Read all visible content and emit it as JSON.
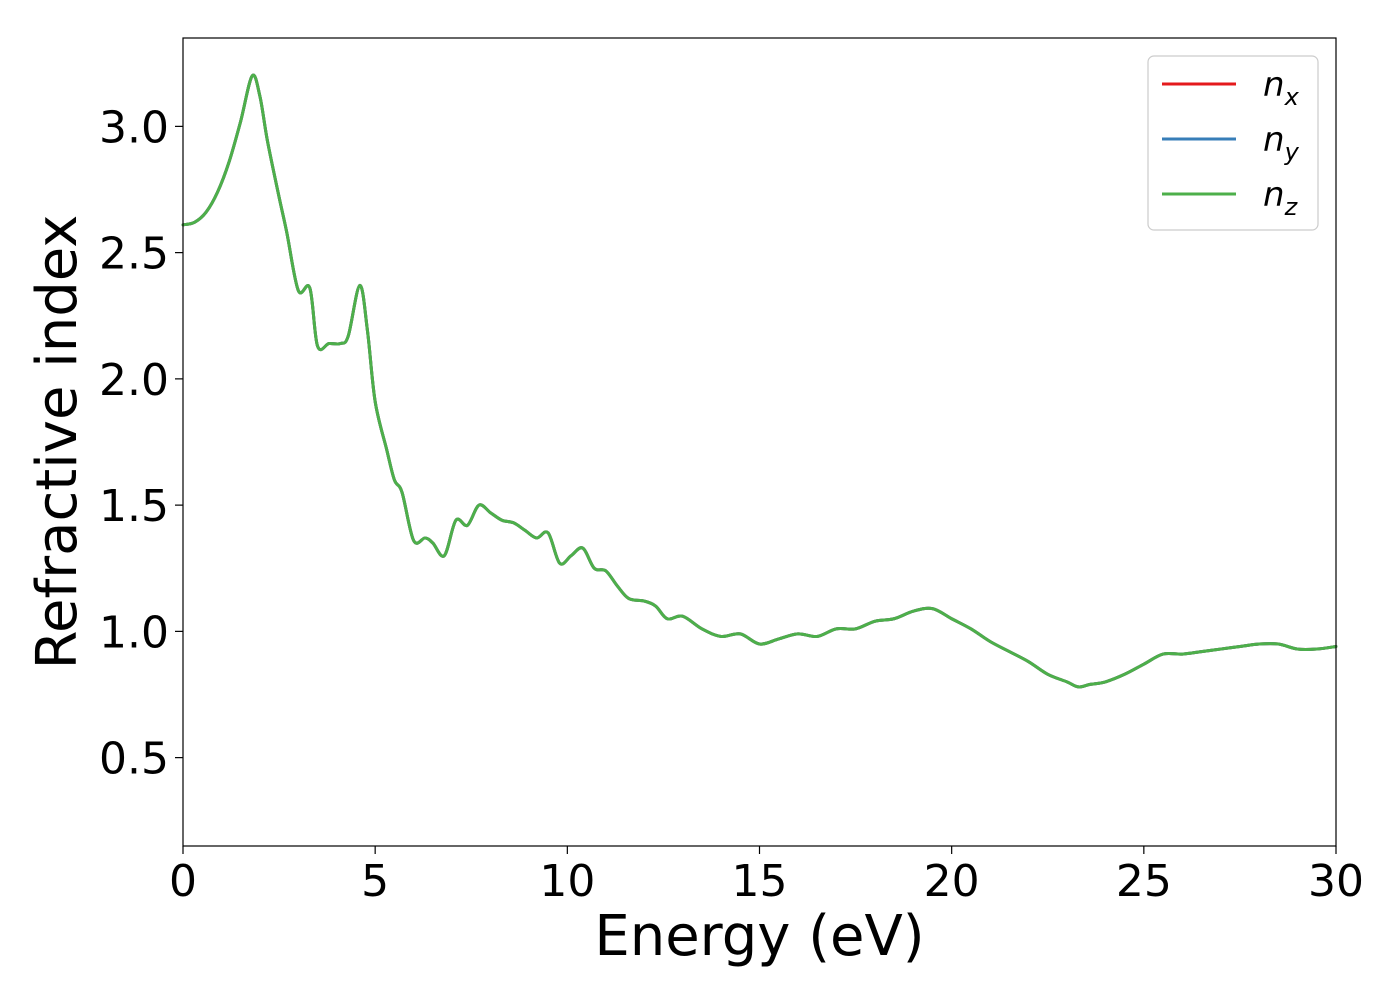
{
  "chart_data": {
    "type": "line",
    "xlabel": "Energy (eV)",
    "ylabel": "Refractive index",
    "xlim": [
      0,
      30
    ],
    "ylim": [
      0.15,
      3.35
    ],
    "xticks": [
      0,
      5,
      10,
      15,
      20,
      25,
      30
    ],
    "xtick_labels": [
      "0",
      "5",
      "10",
      "15",
      "20",
      "25",
      "30"
    ],
    "yticks": [
      0.5,
      1.0,
      1.5,
      2.0,
      2.5,
      3.0
    ],
    "ytick_labels": [
      "0.5",
      "1.0",
      "1.5",
      "2.0",
      "2.5",
      "3.0"
    ],
    "grid": false,
    "legend": {
      "placement": "upper-right"
    },
    "series": [
      {
        "name": "n_x",
        "label_base": "n",
        "label_sub": "x",
        "color": "#e41a1c",
        "x": [
          0,
          0.3,
          0.6,
          0.9,
          1.2,
          1.5,
          1.8,
          2.0,
          2.2,
          2.5,
          2.7,
          3.0,
          3.3,
          3.5,
          3.8,
          4.1,
          4.3,
          4.6,
          4.8,
          5.0,
          5.3,
          5.5,
          5.7,
          6.0,
          6.3,
          6.5,
          6.8,
          7.1,
          7.4,
          7.7,
          8.0,
          8.3,
          8.6,
          8.9,
          9.2,
          9.5,
          9.8,
          10.1,
          10.4,
          10.7,
          11.0,
          11.3,
          11.6,
          12.0,
          12.3,
          12.6,
          13.0,
          13.5,
          14.0,
          14.5,
          15.0,
          15.5,
          16.0,
          16.5,
          17.0,
          17.5,
          18.0,
          18.5,
          19.0,
          19.5,
          20.0,
          20.5,
          21.0,
          21.5,
          22.0,
          22.5,
          23.0,
          23.3,
          23.6,
          24.0,
          24.5,
          25.0,
          25.5,
          26.0,
          26.5,
          27.0,
          27.5,
          28.0,
          28.5,
          29.0,
          29.5,
          30.0
        ],
        "y": [
          2.61,
          2.62,
          2.66,
          2.74,
          2.86,
          3.02,
          3.2,
          3.12,
          2.94,
          2.72,
          2.58,
          2.35,
          2.36,
          2.13,
          2.14,
          2.14,
          2.17,
          2.37,
          2.19,
          1.91,
          1.72,
          1.6,
          1.55,
          1.36,
          1.37,
          1.35,
          1.3,
          1.44,
          1.42,
          1.5,
          1.47,
          1.44,
          1.43,
          1.4,
          1.37,
          1.39,
          1.27,
          1.3,
          1.33,
          1.25,
          1.24,
          1.18,
          1.13,
          1.12,
          1.1,
          1.05,
          1.06,
          1.01,
          0.98,
          0.99,
          0.95,
          0.97,
          0.99,
          0.98,
          1.01,
          1.01,
          1.04,
          1.05,
          1.08,
          1.09,
          1.05,
          1.01,
          0.96,
          0.92,
          0.88,
          0.83,
          0.8,
          0.78,
          0.79,
          0.8,
          0.83,
          0.87,
          0.91,
          0.91,
          0.92,
          0.93,
          0.94,
          0.95,
          0.95,
          0.93,
          0.93,
          0.94
        ]
      },
      {
        "name": "n_y",
        "label_base": "n",
        "label_sub": "y",
        "color": "#377eb8",
        "x": [
          0,
          0.3,
          0.6,
          0.9,
          1.2,
          1.5,
          1.8,
          2.0,
          2.2,
          2.5,
          2.7,
          3.0,
          3.3,
          3.5,
          3.8,
          4.1,
          4.3,
          4.6,
          4.8,
          5.0,
          5.3,
          5.5,
          5.7,
          6.0,
          6.3,
          6.5,
          6.8,
          7.1,
          7.4,
          7.7,
          8.0,
          8.3,
          8.6,
          8.9,
          9.2,
          9.5,
          9.8,
          10.1,
          10.4,
          10.7,
          11.0,
          11.3,
          11.6,
          12.0,
          12.3,
          12.6,
          13.0,
          13.5,
          14.0,
          14.5,
          15.0,
          15.5,
          16.0,
          16.5,
          17.0,
          17.5,
          18.0,
          18.5,
          19.0,
          19.5,
          20.0,
          20.5,
          21.0,
          21.5,
          22.0,
          22.5,
          23.0,
          23.3,
          23.6,
          24.0,
          24.5,
          25.0,
          25.5,
          26.0,
          26.5,
          27.0,
          27.5,
          28.0,
          28.5,
          29.0,
          29.5,
          30.0
        ],
        "y": [
          2.61,
          2.62,
          2.66,
          2.74,
          2.86,
          3.02,
          3.2,
          3.12,
          2.94,
          2.72,
          2.58,
          2.35,
          2.36,
          2.13,
          2.14,
          2.14,
          2.17,
          2.37,
          2.19,
          1.91,
          1.72,
          1.6,
          1.55,
          1.36,
          1.37,
          1.35,
          1.3,
          1.44,
          1.42,
          1.5,
          1.47,
          1.44,
          1.43,
          1.4,
          1.37,
          1.39,
          1.27,
          1.3,
          1.33,
          1.25,
          1.24,
          1.18,
          1.13,
          1.12,
          1.1,
          1.05,
          1.06,
          1.01,
          0.98,
          0.99,
          0.95,
          0.97,
          0.99,
          0.98,
          1.01,
          1.01,
          1.04,
          1.05,
          1.08,
          1.09,
          1.05,
          1.01,
          0.96,
          0.92,
          0.88,
          0.83,
          0.8,
          0.78,
          0.79,
          0.8,
          0.83,
          0.87,
          0.91,
          0.91,
          0.92,
          0.93,
          0.94,
          0.95,
          0.95,
          0.93,
          0.93,
          0.94
        ]
      },
      {
        "name": "n_z",
        "label_base": "n",
        "label_sub": "z",
        "color": "#4daf4a",
        "x": [
          0,
          0.3,
          0.6,
          0.9,
          1.2,
          1.5,
          1.8,
          2.0,
          2.2,
          2.5,
          2.7,
          3.0,
          3.3,
          3.5,
          3.8,
          4.1,
          4.3,
          4.6,
          4.8,
          5.0,
          5.3,
          5.5,
          5.7,
          6.0,
          6.3,
          6.5,
          6.8,
          7.1,
          7.4,
          7.7,
          8.0,
          8.3,
          8.6,
          8.9,
          9.2,
          9.5,
          9.8,
          10.1,
          10.4,
          10.7,
          11.0,
          11.3,
          11.6,
          12.0,
          12.3,
          12.6,
          13.0,
          13.5,
          14.0,
          14.5,
          15.0,
          15.5,
          16.0,
          16.5,
          17.0,
          17.5,
          18.0,
          18.5,
          19.0,
          19.5,
          20.0,
          20.5,
          21.0,
          21.5,
          22.0,
          22.5,
          23.0,
          23.3,
          23.6,
          24.0,
          24.5,
          25.0,
          25.5,
          26.0,
          26.5,
          27.0,
          27.5,
          28.0,
          28.5,
          29.0,
          29.5,
          30.0
        ],
        "y": [
          2.61,
          2.62,
          2.66,
          2.74,
          2.86,
          3.02,
          3.2,
          3.12,
          2.94,
          2.72,
          2.58,
          2.35,
          2.36,
          2.13,
          2.14,
          2.14,
          2.17,
          2.37,
          2.19,
          1.91,
          1.72,
          1.6,
          1.55,
          1.36,
          1.37,
          1.35,
          1.3,
          1.44,
          1.42,
          1.5,
          1.47,
          1.44,
          1.43,
          1.4,
          1.37,
          1.39,
          1.27,
          1.3,
          1.33,
          1.25,
          1.24,
          1.18,
          1.13,
          1.12,
          1.1,
          1.05,
          1.06,
          1.01,
          0.98,
          0.99,
          0.95,
          0.97,
          0.99,
          0.98,
          1.01,
          1.01,
          1.04,
          1.05,
          1.08,
          1.09,
          1.05,
          1.01,
          0.96,
          0.92,
          0.88,
          0.83,
          0.8,
          0.78,
          0.79,
          0.8,
          0.83,
          0.87,
          0.91,
          0.91,
          0.92,
          0.93,
          0.94,
          0.95,
          0.95,
          0.93,
          0.93,
          0.94
        ]
      }
    ]
  }
}
